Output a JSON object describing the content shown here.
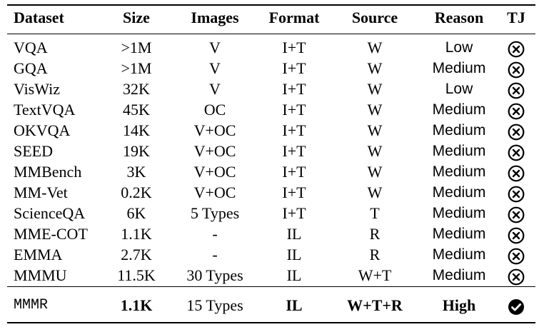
{
  "header": {
    "dataset": "Dataset",
    "size": "Size",
    "images": "Images",
    "format": "Format",
    "source": "Source",
    "reason": "Reason",
    "tj": "TJ"
  },
  "rows": [
    {
      "dataset": "VQA",
      "size": ">1M",
      "images": "V",
      "format": "I+T",
      "source": "W",
      "reason": "Low",
      "tj": "cross"
    },
    {
      "dataset": "GQA",
      "size": ">1M",
      "images": "V",
      "format": "I+T",
      "source": "W",
      "reason": "Medium",
      "tj": "cross"
    },
    {
      "dataset": "VisWiz",
      "size": "32K",
      "images": "V",
      "format": "I+T",
      "source": "W",
      "reason": "Low",
      "tj": "cross"
    },
    {
      "dataset": "TextVQA",
      "size": "45K",
      "images": "OC",
      "format": "I+T",
      "source": "W",
      "reason": "Medium",
      "tj": "cross"
    },
    {
      "dataset": "OKVQA",
      "size": "14K",
      "images": "V+OC",
      "format": "I+T",
      "source": "W",
      "reason": "Medium",
      "tj": "cross"
    },
    {
      "dataset": "SEED",
      "size": "19K",
      "images": "V+OC",
      "format": "I+T",
      "source": "W",
      "reason": "Medium",
      "tj": "cross"
    },
    {
      "dataset": "MMBench",
      "size": "3K",
      "images": "V+OC",
      "format": "I+T",
      "source": "W",
      "reason": "Medium",
      "tj": "cross"
    },
    {
      "dataset": "MM-Vet",
      "size": "0.2K",
      "images": "V+OC",
      "format": "I+T",
      "source": "W",
      "reason": "Medium",
      "tj": "cross"
    },
    {
      "dataset": "ScienceQA",
      "size": "6K",
      "images": "5 Types",
      "format": "I+T",
      "source": "T",
      "reason": "Medium",
      "tj": "cross"
    },
    {
      "dataset": "MME-COT",
      "size": "1.1K",
      "images": "-",
      "format": "IL",
      "source": "R",
      "reason": "Medium",
      "tj": "cross"
    },
    {
      "dataset": "EMMA",
      "size": "2.7K",
      "images": "-",
      "format": "IL",
      "source": "R",
      "reason": "Medium",
      "tj": "cross"
    },
    {
      "dataset": "MMMU",
      "size": "11.5K",
      "images": "30 Types",
      "format": "IL",
      "source": "W+T",
      "reason": "Medium",
      "tj": "cross"
    }
  ],
  "final_row": {
    "dataset": "MMMR",
    "size": "1.1K",
    "images": "15 Types",
    "format": "IL",
    "source": "W+T+R",
    "reason": "High",
    "tj": "check"
  },
  "icons": {
    "cross": "circled-x-icon",
    "check": "filled-check-icon"
  }
}
